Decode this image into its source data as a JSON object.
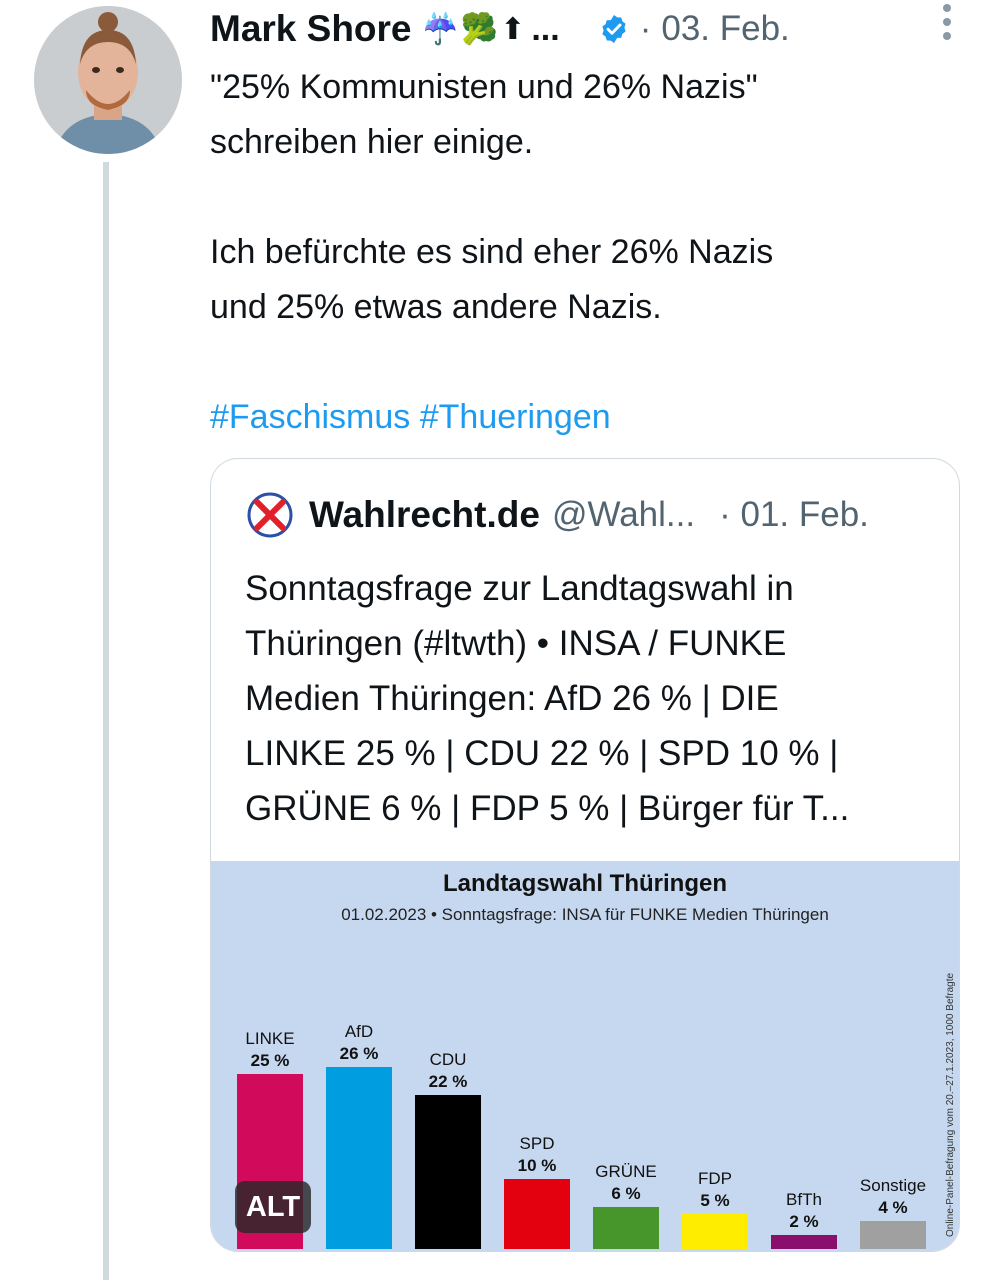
{
  "tweet": {
    "author_name": "Mark Shore",
    "author_emoji": "☔🥦⬆",
    "name_truncation": "...",
    "date_separator": "·",
    "date": "03. Feb.",
    "text_lines": [
      "\"25% Kommunisten und 26% Nazis\"",
      "schreiben hier einige."
    ],
    "text_lines_2": [
      "Ich befürchte es sind eher 26% Nazis",
      "und 25% etwas andere Nazis."
    ],
    "hashtags": "#Faschismus #Thueringen"
  },
  "quote": {
    "author_name": "Wahlrecht.de",
    "handle": "@Wahl...",
    "date": "· 01. Feb.",
    "text_lines": [
      "Sonntagsfrage zur Landtagswahl in",
      "Thüringen (#ltwth) • INSA / FUNKE",
      "Medien Thüringen: AfD 26 % | DIE",
      "LINKE 25 % | CDU 22 % | SPD 10 % |",
      "GRÜNE 6 % | FDP 5 % | Bürger für T..."
    ],
    "alt_badge": "ALT"
  },
  "colors": {
    "hashtag": "#1d9bf0",
    "secondary_text": "#536471",
    "verified": "#1d9bf0",
    "media_bg": "#c6d8ef"
  },
  "chart_data": {
    "type": "bar",
    "title": "Landtagswahl Thüringen",
    "subtitle": "01.02.2023 • Sonntagsfrage: INSA für FUNKE Medien Thüringen",
    "side_note": "Online-Panel-Befragung vom 20.–27.1.2023, 1000 Befragte",
    "categories": [
      "LINKE",
      "AfD",
      "CDU",
      "SPD",
      "GRÜNE",
      "FDP",
      "BfTh",
      "Sonstige"
    ],
    "values": [
      25,
      26,
      22,
      10,
      6,
      5,
      2,
      4
    ],
    "value_labels": [
      "25 %",
      "26 %",
      "22 %",
      "10 %",
      "6 %",
      "5 %",
      "2 %",
      "4 %"
    ],
    "colors": [
      "#d10a5c",
      "#009ee0",
      "#000000",
      "#e3000f",
      "#46962b",
      "#ffed00",
      "#8a0f6c",
      "#a0a0a0"
    ],
    "ylim": [
      0,
      30
    ],
    "grid": false,
    "legend": "none"
  }
}
